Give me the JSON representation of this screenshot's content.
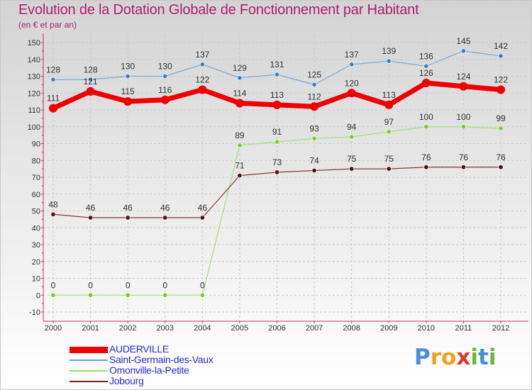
{
  "header": {
    "title": "Evolution de la Dotation Globale de Fonctionnement par Habitant",
    "subtitle": "(en € et par an)"
  },
  "chart_data": {
    "type": "line",
    "title": "Evolution de la Dotation Globale de Fonctionnement par Habitant",
    "subtitle": "(en € et par an)",
    "xlabel": "",
    "ylabel": "",
    "ylim": [
      -10,
      150
    ],
    "yticks": [
      -10,
      0,
      10,
      20,
      30,
      40,
      50,
      60,
      70,
      80,
      90,
      100,
      110,
      120,
      130,
      140,
      150
    ],
    "grid": true,
    "legend_position": "bottom-left",
    "categories": [
      "2000",
      "2001",
      "2002",
      "2003",
      "2004",
      "2005",
      "2006",
      "2007",
      "2008",
      "2009",
      "2010",
      "2011",
      "2012"
    ],
    "series": [
      {
        "name": "AUDERVILLE",
        "color": "#ee0000",
        "values": [
          111,
          121,
          115,
          116,
          122,
          114,
          113,
          112,
          120,
          113,
          126,
          124,
          122
        ]
      },
      {
        "name": "Saint-Germain-des-Vaux",
        "color": "#6a9fd3",
        "values": [
          128,
          128,
          130,
          130,
          137,
          129,
          131,
          125,
          137,
          139,
          136,
          145,
          142
        ]
      },
      {
        "name": "Omonville-la-Petite",
        "color": "#99dd66",
        "values": [
          0,
          0,
          0,
          0,
          0,
          89,
          91,
          93,
          94,
          97,
          100,
          100,
          99
        ]
      },
      {
        "name": "Jobourg",
        "color": "#772222",
        "values": [
          48,
          46,
          46,
          46,
          46,
          71,
          73,
          74,
          75,
          75,
          76,
          76,
          76
        ]
      }
    ]
  },
  "legend": {
    "items": [
      {
        "label": "AUDERVILLE",
        "color": "#ee0000"
      },
      {
        "label": "Saint-Germain-des-Vaux",
        "color": "#6a9fd3"
      },
      {
        "label": "Omonville-la-Petite",
        "color": "#99dd66"
      },
      {
        "label": "Jobourg",
        "color": "#772222"
      }
    ]
  },
  "logo": {
    "letters": [
      "P",
      "r",
      "o",
      "x",
      "i",
      "t",
      "i"
    ],
    "colors": [
      "#4a8fd6",
      "#f2a01e",
      "#f2a01e",
      "#e03a2a",
      "#66b840",
      "#4a8fd6",
      "#66b840"
    ]
  }
}
